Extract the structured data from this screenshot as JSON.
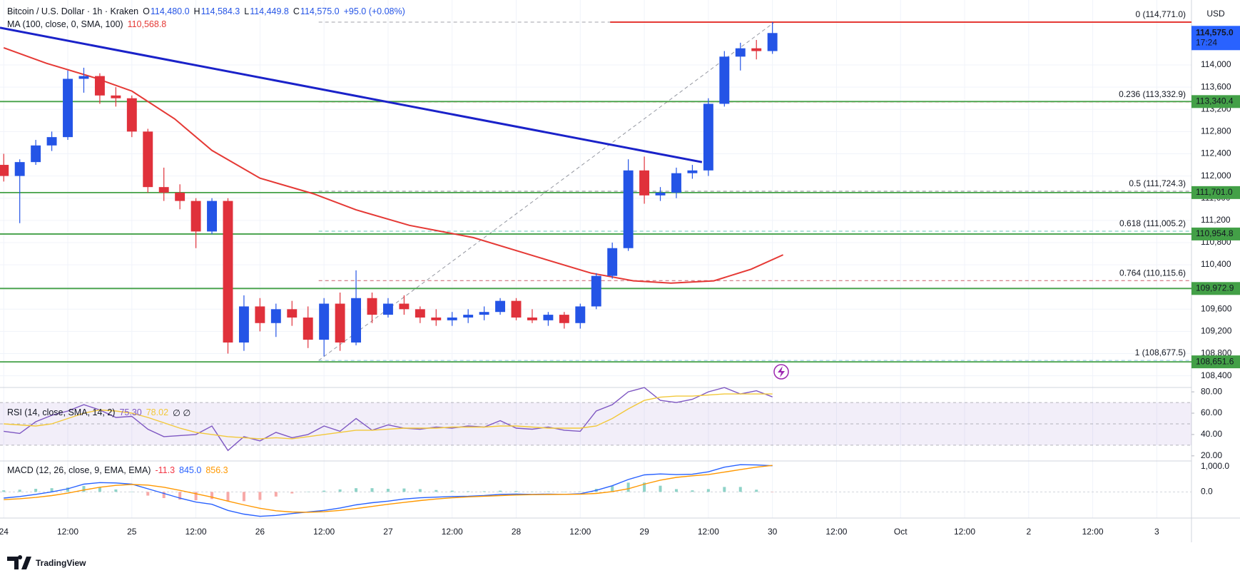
{
  "chart_data": {
    "type": "candlestick",
    "title": "Bitcoin / U.S. Dollar · 1h · Kraken",
    "ohlc_legend": [
      {
        "key": "O",
        "value": "114,480.0"
      },
      {
        "key": "H",
        "value": "114,584.3"
      },
      {
        "key": "L",
        "value": "114,449.8"
      },
      {
        "key": "C",
        "value": "114,575.0"
      }
    ],
    "change": "+95.0 (+0.08%)",
    "currency": "USD",
    "up_color": "#2454e6",
    "down_color": "#e0313b",
    "grid": true,
    "x": [
      0,
      3,
      6,
      9,
      12,
      15,
      18,
      21,
      24,
      27,
      30,
      33,
      36,
      39,
      42,
      45,
      48,
      51,
      54,
      57,
      60,
      63,
      66,
      69,
      72,
      75,
      78,
      81,
      84,
      87,
      90,
      93,
      96,
      99,
      102,
      105,
      108,
      111,
      114,
      117,
      120,
      123,
      126,
      129,
      132,
      135,
      138,
      141,
      144
    ],
    "open": [
      112200,
      112000,
      112250,
      112550,
      112700,
      113750,
      113800,
      113450,
      113400,
      112800,
      111800,
      111700,
      111550,
      111000,
      111550,
      109000,
      109650,
      109350,
      109600,
      109450,
      109050,
      109700,
      109000,
      109800,
      109500,
      109700,
      109600,
      109450,
      109400,
      109450,
      109500,
      109550,
      109750,
      109450,
      109400,
      109500,
      109350,
      109650,
      110200,
      110700,
      112100,
      111650,
      111700,
      112050,
      112100,
      113300,
      114150,
      114300,
      114250
    ],
    "high": [
      112400,
      112300,
      112650,
      112800,
      113900,
      113950,
      113850,
      113600,
      113450,
      112850,
      112150,
      111850,
      111600,
      111600,
      111600,
      109850,
      109800,
      109700,
      109750,
      109650,
      109800,
      109900,
      110300,
      109900,
      109800,
      109850,
      109650,
      109600,
      109550,
      109600,
      109650,
      109800,
      109800,
      109600,
      109550,
      109550,
      109700,
      110250,
      110800,
      112300,
      112350,
      111800,
      112150,
      112200,
      113400,
      114250,
      114400,
      114450,
      114771
    ],
    "low": [
      111900,
      111150,
      112200,
      112450,
      112650,
      113500,
      113300,
      113250,
      112700,
      111700,
      111550,
      111400,
      110700,
      110950,
      108800,
      108850,
      109200,
      109100,
      109300,
      108900,
      108750,
      108850,
      108950,
      109350,
      109450,
      109500,
      109350,
      109300,
      109300,
      109350,
      109400,
      109500,
      109400,
      109350,
      109300,
      109250,
      109250,
      109600,
      110150,
      110650,
      111500,
      111550,
      111600,
      111950,
      112000,
      113250,
      113900,
      114100,
      114200
    ],
    "close": [
      112000,
      112250,
      112550,
      112700,
      113750,
      113800,
      113450,
      113400,
      112800,
      111800,
      111700,
      111550,
      111000,
      111550,
      109000,
      109650,
      109350,
      109600,
      109450,
      109050,
      109700,
      109000,
      109800,
      109500,
      109700,
      109600,
      109450,
      109400,
      109450,
      109500,
      109550,
      109750,
      109450,
      109400,
      109500,
      109350,
      109650,
      110200,
      110700,
      112100,
      111650,
      111700,
      112050,
      112100,
      113300,
      114150,
      114300,
      114250,
      114575
    ],
    "xlim": [
      -0.7,
      222.5
    ],
    "xticks": [
      {
        "value": 0,
        "label": "24"
      },
      {
        "value": 12,
        "label": "12:00"
      },
      {
        "value": 24,
        "label": "25"
      },
      {
        "value": 36,
        "label": "12:00"
      },
      {
        "value": 48,
        "label": "26"
      },
      {
        "value": 60,
        "label": "12:00"
      },
      {
        "value": 72,
        "label": "27"
      },
      {
        "value": 84,
        "label": "12:00"
      },
      {
        "value": 96,
        "label": "28"
      },
      {
        "value": 108,
        "label": "12:00"
      },
      {
        "value": 120,
        "label": "29"
      },
      {
        "value": 132,
        "label": "12:00"
      },
      {
        "value": 144,
        "label": "30"
      },
      {
        "value": 156,
        "label": "12:00"
      },
      {
        "value": 168,
        "label": "Oct"
      },
      {
        "value": 180,
        "label": "12:00"
      },
      {
        "value": 192,
        "label": "2"
      },
      {
        "value": 204,
        "label": "12:00"
      },
      {
        "value": 216,
        "label": "3"
      }
    ],
    "ylim": [
      108190,
      115170
    ],
    "yticks": [
      {
        "value": 108400,
        "label": "108,400"
      },
      {
        "value": 108800,
        "label": "108,800"
      },
      {
        "value": 109200,
        "label": "109,200"
      },
      {
        "value": 109600,
        "label": "109,600"
      },
      {
        "value": 110000,
        "label": "110,000"
      },
      {
        "value": 110400,
        "label": "110,400"
      },
      {
        "value": 110800,
        "label": "110,800"
      },
      {
        "value": 111200,
        "label": "111,200"
      },
      {
        "value": 111600,
        "label": "111,600"
      },
      {
        "value": 112000,
        "label": "112,000"
      },
      {
        "value": 112400,
        "label": "112,400"
      },
      {
        "value": 112800,
        "label": "112,800"
      },
      {
        "value": 113200,
        "label": "113,200"
      },
      {
        "value": 113600,
        "label": "113,600"
      },
      {
        "value": 114000,
        "label": "114,000"
      }
    ],
    "ma": {
      "name": "MA (100, close, 0, SMA, 100)",
      "last": "110,568.8",
      "color": "#e53935",
      "x": [
        0,
        8,
        17,
        24,
        32,
        39,
        48,
        58,
        66,
        76,
        88,
        100,
        110,
        118,
        125,
        133,
        140,
        146
      ],
      "values": [
        114310,
        114030,
        113770,
        113530,
        113030,
        112460,
        111960,
        111680,
        111390,
        111110,
        110890,
        110540,
        110250,
        110110,
        110070,
        110110,
        110320,
        110580
      ]
    },
    "trendline": {
      "color": "#1a22c9",
      "x": [
        -0.7,
        130.8
      ],
      "values": [
        114670,
        112250
      ]
    },
    "level_color": "#43a047",
    "levels": [
      {
        "value": 113340.4,
        "label": "113,340.4"
      },
      {
        "value": 111701.0,
        "label": "111,701.0"
      },
      {
        "value": 110954.8,
        "label": "110,954.8"
      },
      {
        "value": 109972.9,
        "label": "109,972.9"
      },
      {
        "value": 108651.6,
        "label": "108,651.6"
      }
    ],
    "high_line": {
      "value": 114771,
      "x_start": 113.6,
      "color": "#e53935"
    },
    "fib": {
      "x": [
        59,
        144.4
      ],
      "values": [
        108677.5,
        114771
      ],
      "color": "#9598a1",
      "levels": [
        {
          "value": 114771,
          "label": "0 (114,771.0)",
          "color": "#787b86"
        },
        {
          "value": 113332.9,
          "label": "0.236 (113,332.9)",
          "color": "#f23645"
        },
        {
          "value": 111724.3,
          "label": "0.5 (111,724.3)",
          "color": "#50535e"
        },
        {
          "value": 111005.2,
          "label": "0.618 (111,005.2)",
          "color": "#22ab94"
        },
        {
          "value": 110115.6,
          "label": "0.764 (110,115.6)",
          "color": "#b2182b"
        },
        {
          "value": 108677.5,
          "label": "1 (108,677.5)",
          "color": "#5fa8d3"
        }
      ]
    },
    "last_price": {
      "value": 114575,
      "label": "114,575.0",
      "countdown": "17:24",
      "color": "#2962ff"
    },
    "rsi": {
      "title": "RSI (14, close, SMA, 14, 2)",
      "last": "75.30",
      "sma_last": "78.02",
      "extra": "∅ ∅",
      "ylim": [
        15.2,
        84.1
      ],
      "yticks": [
        {
          "value": 20,
          "label": "20.00"
        },
        {
          "value": 40,
          "label": "40.00"
        },
        {
          "value": 60,
          "label": "60.00"
        },
        {
          "value": 80,
          "label": "80.00"
        }
      ],
      "band": [
        30,
        70
      ],
      "middle": 50,
      "band_color": "#7e57c2",
      "series": [
        {
          "color": "#7e57c2",
          "values": [
            43,
            41,
            52,
            58,
            62,
            68,
            63,
            56,
            57,
            45,
            38,
            39,
            40,
            48,
            25,
            38,
            34,
            42,
            37,
            40,
            48,
            43,
            55,
            44,
            49,
            46,
            45,
            47,
            46,
            48,
            47,
            53,
            46,
            45,
            47,
            44,
            43,
            62,
            68,
            80,
            84,
            72,
            70,
            73,
            80,
            84,
            78,
            81,
            75.3
          ]
        },
        {
          "color": "#f2c83a",
          "values": [
            50,
            49,
            48,
            50,
            55,
            60,
            63,
            62,
            60,
            56,
            51,
            46,
            42,
            40,
            38,
            37,
            36,
            37,
            36,
            38,
            40,
            42,
            44,
            44,
            45,
            46,
            46,
            46,
            47,
            47,
            47,
            48,
            48,
            47,
            46,
            46,
            46,
            48,
            55,
            64,
            72,
            75,
            76,
            76,
            77,
            78,
            78,
            78,
            78.02
          ]
        }
      ]
    },
    "macd": {
      "title": "MACD (12, 26, close, 9, EMA, EMA)",
      "hist_last": "-11.3",
      "macd_last": "845.0",
      "signal_last": "856.3",
      "ylim": [
        -846,
        1000
      ],
      "yticks": [
        {
          "value": 0,
          "label": "0.0"
        },
        {
          "value": 1000,
          "label": "1,000.0"
        }
      ],
      "histogram": {
        "up_color": "#8fd3c8",
        "down_color": "#f7a9a7",
        "values": [
          50,
          70,
          100,
          120,
          140,
          190,
          150,
          80,
          10,
          -120,
          -200,
          -250,
          -270,
          -230,
          -300,
          -300,
          -260,
          -150,
          -50,
          10,
          40,
          80,
          120,
          120,
          100,
          110,
          90,
          60,
          40,
          20,
          20,
          40,
          30,
          10,
          15,
          0,
          15,
          100,
          190,
          300,
          300,
          200,
          90,
          50,
          90,
          160,
          160,
          70,
          -11.3
        ]
      },
      "macd_line": {
        "color": "#2962ff",
        "values": [
          -200,
          -150,
          -80,
          0,
          100,
          250,
          300,
          290,
          250,
          100,
          -50,
          -200,
          -330,
          -400,
          -600,
          -720,
          -790,
          -760,
          -700,
          -650,
          -600,
          -520,
          -420,
          -350,
          -300,
          -230,
          -190,
          -170,
          -150,
          -140,
          -120,
          -80,
          -70,
          -80,
          -70,
          -80,
          -60,
          50,
          200,
          400,
          550,
          580,
          560,
          570,
          650,
          800,
          880,
          870,
          845
        ]
      },
      "signal_line": {
        "color": "#ff9800",
        "values": [
          -250,
          -220,
          -180,
          -120,
          -40,
          60,
          150,
          210,
          240,
          220,
          150,
          50,
          -60,
          -170,
          -300,
          -420,
          -530,
          -610,
          -650,
          -660,
          -640,
          -600,
          -540,
          -470,
          -400,
          -340,
          -280,
          -230,
          -190,
          -160,
          -140,
          -120,
          -100,
          -90,
          -85,
          -80,
          -75,
          -50,
          10,
          100,
          250,
          380,
          470,
          520,
          560,
          640,
          720,
          800,
          856.3
        ]
      }
    }
  },
  "footer": {
    "brand": "TradingView"
  }
}
